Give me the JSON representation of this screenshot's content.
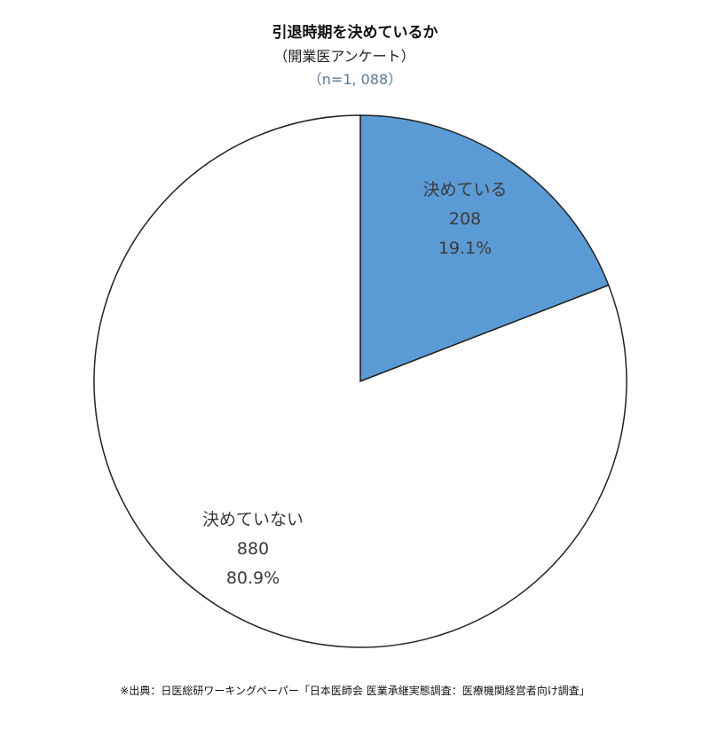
{
  "chart_data": {
    "type": "pie",
    "title": "引退時期を決めているか",
    "subtitle": "（開業医アンケート）",
    "sample_size": "（n=1, 088）",
    "slices": [
      {
        "label": "決めている",
        "value": 208,
        "percent": "19.1%",
        "color": "#5b9bd5"
      },
      {
        "label": "決めていない",
        "value": 880,
        "percent": "80.9%",
        "color": "#ffffff"
      }
    ],
    "start_angle": "12 o'clock, clockwise",
    "legend": "none"
  },
  "source": "※出典：日医総研ワーキングペーパー「日本医師会 医業承継実態調査：医療機関経営者向け調査」"
}
